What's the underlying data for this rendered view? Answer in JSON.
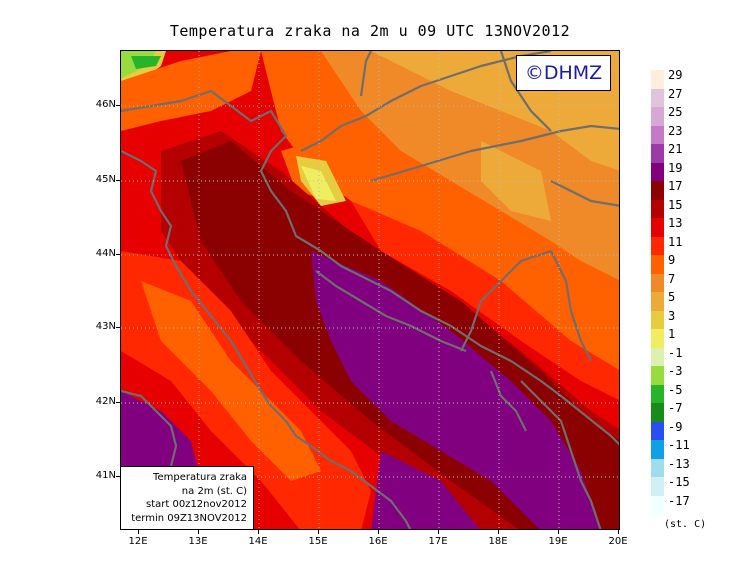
{
  "title": "Temperatura zraka na 2m u 09 UTC 13NOV2012",
  "logo": "©DHMZ",
  "lat_labels": [
    "46N",
    "45N",
    "44N",
    "43N",
    "42N",
    "41N"
  ],
  "lon_labels": [
    "12E",
    "13E",
    "14E",
    "15E",
    "16E",
    "17E",
    "18E",
    "19E",
    "20E"
  ],
  "infobox": {
    "line1": "Temperatura zraka",
    "line2": "na 2m (st. C)",
    "line3": "start 00z12nov2012",
    "line4": "termin 09Z13NOV2012"
  },
  "legend": {
    "labels": [
      "29",
      "27",
      "25",
      "23",
      "21",
      "19",
      "17",
      "15",
      "13",
      "11",
      "9",
      "7",
      "5",
      "3",
      "1",
      "-1",
      "-3",
      "-5",
      "-7",
      "-9",
      "-11",
      "-13",
      "-15",
      "-17"
    ],
    "colors": [
      "#ffeedd",
      "#e0c4dc",
      "#d7a7d6",
      "#c47ac6",
      "#9c3aa8",
      "#800080",
      "#8b0000",
      "#b40000",
      "#e60000",
      "#ff2800",
      "#ff6000",
      "#f08a28",
      "#eeaa38",
      "#e6cc40",
      "#eeee60",
      "#dcf0b0",
      "#96dc3c",
      "#28b428",
      "#188c18",
      "#2850f0",
      "#10a0e6",
      "#a0dceb",
      "#d0f0f5",
      "#f0ffff"
    ],
    "unit": "(st. C)"
  }
}
